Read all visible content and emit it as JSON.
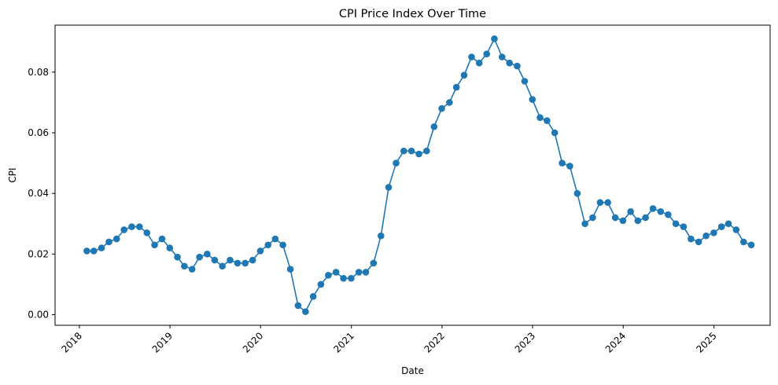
{
  "chart_data": {
    "type": "line",
    "title": "CPI Price Index Over Time",
    "xlabel": "Date",
    "ylabel": "CPI",
    "x_tick_labels": [
      "2018",
      "2019",
      "2020",
      "2021",
      "2022",
      "2023",
      "2024",
      "2025"
    ],
    "y_tick_labels": [
      "0.00",
      "0.02",
      "0.04",
      "0.06",
      "0.08"
    ],
    "y_ticks": [
      0.0,
      0.02,
      0.04,
      0.06,
      0.08
    ],
    "ylim": [
      -0.0035,
      0.0955
    ],
    "xlim": [
      "2017-09-25",
      "2025-08-15"
    ],
    "grid": false,
    "legend": "none",
    "series_color": "#1f77b4",
    "marker": "circle",
    "series": [
      {
        "x": [
          "2018-01-31",
          "2018-02-28",
          "2018-03-31",
          "2018-04-30",
          "2018-05-31",
          "2018-06-30",
          "2018-07-31",
          "2018-08-31",
          "2018-09-30",
          "2018-10-31",
          "2018-11-30",
          "2018-12-31",
          "2019-01-31",
          "2019-02-28",
          "2019-03-31",
          "2019-04-30",
          "2019-05-31",
          "2019-06-30",
          "2019-07-31",
          "2019-08-31",
          "2019-09-30",
          "2019-10-31",
          "2019-11-30",
          "2019-12-31",
          "2020-01-31",
          "2020-02-29",
          "2020-03-31",
          "2020-04-30",
          "2020-05-31",
          "2020-06-30",
          "2020-07-31",
          "2020-08-31",
          "2020-09-30",
          "2020-10-31",
          "2020-11-30",
          "2020-12-31",
          "2021-01-31",
          "2021-02-28",
          "2021-03-31",
          "2021-04-30",
          "2021-05-31",
          "2021-06-30",
          "2021-07-31",
          "2021-08-31",
          "2021-09-30",
          "2021-10-31",
          "2021-11-30",
          "2021-12-31",
          "2022-01-31",
          "2022-02-28",
          "2022-03-31",
          "2022-04-30",
          "2022-05-31",
          "2022-06-30",
          "2022-07-31",
          "2022-08-31",
          "2022-09-30",
          "2022-10-31",
          "2022-11-30",
          "2022-12-31",
          "2023-01-31",
          "2023-02-28",
          "2023-03-31",
          "2023-04-30",
          "2023-05-31",
          "2023-06-30",
          "2023-07-31",
          "2023-08-31",
          "2023-09-30",
          "2023-10-31",
          "2023-11-30",
          "2023-12-31",
          "2024-01-31",
          "2024-02-29",
          "2024-03-31",
          "2024-04-30",
          "2024-05-31",
          "2024-06-30",
          "2024-07-31",
          "2024-08-31",
          "2024-09-30",
          "2024-10-31",
          "2024-11-30",
          "2024-12-31",
          "2025-01-31",
          "2025-02-28",
          "2025-03-31",
          "2025-04-30",
          "2025-05-31"
        ],
        "values": [
          0.021,
          0.021,
          0.022,
          0.024,
          0.025,
          0.028,
          0.029,
          0.029,
          0.027,
          0.023,
          0.025,
          0.022,
          0.019,
          0.016,
          0.015,
          0.019,
          0.02,
          0.018,
          0.016,
          0.018,
          0.017,
          0.017,
          0.018,
          0.021,
          0.023,
          0.025,
          0.023,
          0.015,
          0.003,
          0.001,
          0.006,
          0.01,
          0.013,
          0.014,
          0.012,
          0.012,
          0.014,
          0.014,
          0.017,
          0.026,
          0.042,
          0.05,
          0.054,
          0.054,
          0.053,
          0.054,
          0.062,
          0.068,
          0.07,
          0.075,
          0.079,
          0.085,
          0.083,
          0.086,
          0.091,
          0.085,
          0.083,
          0.082,
          0.077,
          0.071,
          0.065,
          0.064,
          0.06,
          0.05,
          0.049,
          0.04,
          0.03,
          0.032,
          0.037,
          0.037,
          0.032,
          0.031,
          0.034,
          0.031,
          0.032,
          0.035,
          0.034,
          0.033,
          0.03,
          0.029,
          0.025,
          0.024,
          0.026,
          0.027,
          0.029,
          0.03,
          0.028,
          0.024,
          0.023
        ]
      }
    ]
  }
}
